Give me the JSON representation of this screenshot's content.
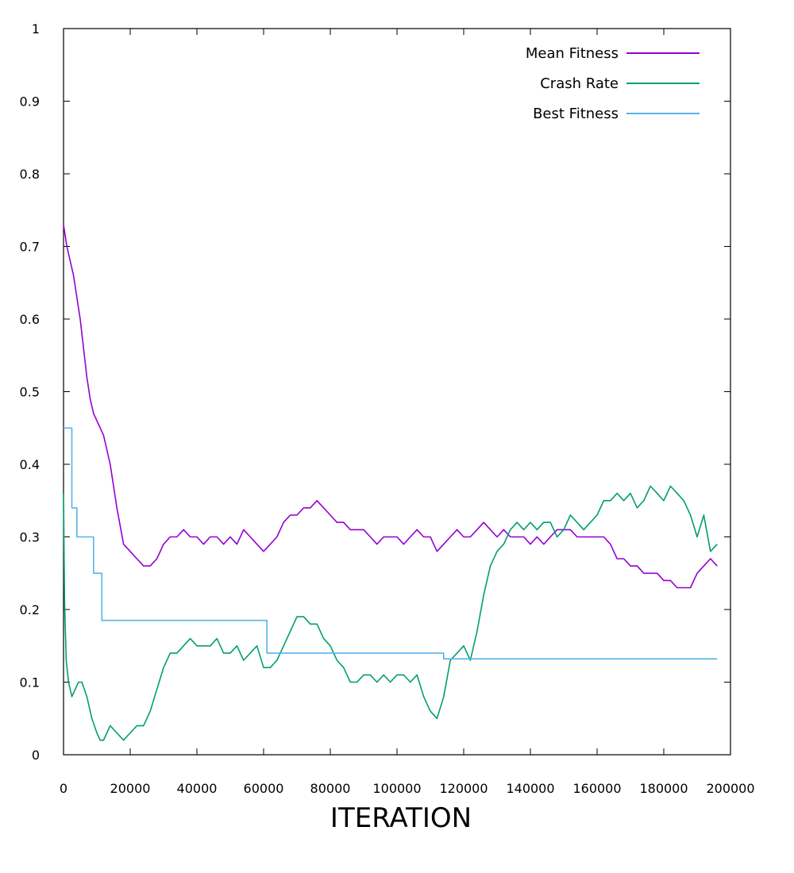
{
  "chart_data": {
    "type": "line",
    "title": "",
    "xlabel": "ITERATION",
    "ylabel": "",
    "xlim": [
      0,
      200000
    ],
    "ylim": [
      0,
      1
    ],
    "x_ticks": [
      0,
      20000,
      40000,
      60000,
      80000,
      100000,
      120000,
      140000,
      160000,
      180000,
      200000
    ],
    "x_tick_labels": [
      "0",
      "20000",
      "40000",
      "60000",
      "80000",
      "100000",
      "120000",
      "140000",
      "160000",
      "180000",
      "200000"
    ],
    "y_ticks": [
      0,
      0.1,
      0.2,
      0.3,
      0.4,
      0.5,
      0.6,
      0.7,
      0.8,
      0.9,
      1
    ],
    "y_tick_labels": [
      "0",
      "0.1",
      "0.2",
      "0.3",
      "0.4",
      "0.5",
      "0.6",
      "0.7",
      "0.8",
      "0.9",
      "1"
    ],
    "grid": false,
    "legend_position": "top-right",
    "series": [
      {
        "name": "Mean Fitness",
        "color": "#9400d3",
        "points": [
          [
            0,
            0.73
          ],
          [
            1000,
            0.7
          ],
          [
            3000,
            0.66
          ],
          [
            5000,
            0.6
          ],
          [
            7000,
            0.52
          ],
          [
            8000,
            0.49
          ],
          [
            9000,
            0.47
          ],
          [
            10000,
            0.46
          ],
          [
            11000,
            0.45
          ],
          [
            12000,
            0.44
          ],
          [
            14000,
            0.4
          ],
          [
            16000,
            0.34
          ],
          [
            18000,
            0.29
          ],
          [
            20000,
            0.28
          ],
          [
            22000,
            0.27
          ],
          [
            24000,
            0.26
          ],
          [
            26000,
            0.26
          ],
          [
            28000,
            0.27
          ],
          [
            30000,
            0.29
          ],
          [
            32000,
            0.3
          ],
          [
            34000,
            0.3
          ],
          [
            36000,
            0.31
          ],
          [
            38000,
            0.3
          ],
          [
            40000,
            0.3
          ],
          [
            42000,
            0.29
          ],
          [
            44000,
            0.3
          ],
          [
            46000,
            0.3
          ],
          [
            48000,
            0.29
          ],
          [
            50000,
            0.3
          ],
          [
            52000,
            0.29
          ],
          [
            54000,
            0.31
          ],
          [
            56000,
            0.3
          ],
          [
            58000,
            0.29
          ],
          [
            60000,
            0.28
          ],
          [
            62000,
            0.29
          ],
          [
            64000,
            0.3
          ],
          [
            66000,
            0.32
          ],
          [
            68000,
            0.33
          ],
          [
            70000,
            0.33
          ],
          [
            72000,
            0.34
          ],
          [
            74000,
            0.34
          ],
          [
            76000,
            0.35
          ],
          [
            78000,
            0.34
          ],
          [
            80000,
            0.33
          ],
          [
            82000,
            0.32
          ],
          [
            84000,
            0.32
          ],
          [
            86000,
            0.31
          ],
          [
            88000,
            0.31
          ],
          [
            90000,
            0.31
          ],
          [
            92000,
            0.3
          ],
          [
            94000,
            0.29
          ],
          [
            96000,
            0.3
          ],
          [
            98000,
            0.3
          ],
          [
            100000,
            0.3
          ],
          [
            102000,
            0.29
          ],
          [
            104000,
            0.3
          ],
          [
            106000,
            0.31
          ],
          [
            108000,
            0.3
          ],
          [
            110000,
            0.3
          ],
          [
            112000,
            0.28
          ],
          [
            114000,
            0.29
          ],
          [
            116000,
            0.3
          ],
          [
            118000,
            0.31
          ],
          [
            120000,
            0.3
          ],
          [
            122000,
            0.3
          ],
          [
            124000,
            0.31
          ],
          [
            126000,
            0.32
          ],
          [
            128000,
            0.31
          ],
          [
            130000,
            0.3
          ],
          [
            132000,
            0.31
          ],
          [
            134000,
            0.3
          ],
          [
            136000,
            0.3
          ],
          [
            138000,
            0.3
          ],
          [
            140000,
            0.29
          ],
          [
            142000,
            0.3
          ],
          [
            144000,
            0.29
          ],
          [
            146000,
            0.3
          ],
          [
            148000,
            0.31
          ],
          [
            150000,
            0.31
          ],
          [
            152000,
            0.31
          ],
          [
            154000,
            0.3
          ],
          [
            156000,
            0.3
          ],
          [
            158000,
            0.3
          ],
          [
            160000,
            0.3
          ],
          [
            162000,
            0.3
          ],
          [
            164000,
            0.29
          ],
          [
            166000,
            0.27
          ],
          [
            168000,
            0.27
          ],
          [
            170000,
            0.26
          ],
          [
            172000,
            0.26
          ],
          [
            174000,
            0.25
          ],
          [
            176000,
            0.25
          ],
          [
            178000,
            0.25
          ],
          [
            180000,
            0.24
          ],
          [
            182000,
            0.24
          ],
          [
            184000,
            0.23
          ],
          [
            186000,
            0.23
          ],
          [
            188000,
            0.23
          ],
          [
            190000,
            0.25
          ],
          [
            192000,
            0.26
          ],
          [
            194000,
            0.27
          ],
          [
            196000,
            0.26
          ]
        ]
      },
      {
        "name": "Crash Rate",
        "color": "#009e73",
        "points": [
          [
            0,
            0.36
          ],
          [
            300,
            0.21
          ],
          [
            800,
            0.13
          ],
          [
            1500,
            0.1
          ],
          [
            2500,
            0.08
          ],
          [
            3500,
            0.09
          ],
          [
            4500,
            0.1
          ],
          [
            5500,
            0.1
          ],
          [
            7000,
            0.08
          ],
          [
            8500,
            0.05
          ],
          [
            10000,
            0.03
          ],
          [
            11000,
            0.02
          ],
          [
            12000,
            0.02
          ],
          [
            13000,
            0.03
          ],
          [
            14000,
            0.04
          ],
          [
            16000,
            0.03
          ],
          [
            18000,
            0.02
          ],
          [
            20000,
            0.03
          ],
          [
            22000,
            0.04
          ],
          [
            24000,
            0.04
          ],
          [
            26000,
            0.06
          ],
          [
            28000,
            0.09
          ],
          [
            30000,
            0.12
          ],
          [
            32000,
            0.14
          ],
          [
            34000,
            0.14
          ],
          [
            36000,
            0.15
          ],
          [
            38000,
            0.16
          ],
          [
            40000,
            0.15
          ],
          [
            42000,
            0.15
          ],
          [
            44000,
            0.15
          ],
          [
            46000,
            0.16
          ],
          [
            48000,
            0.14
          ],
          [
            50000,
            0.14
          ],
          [
            52000,
            0.15
          ],
          [
            54000,
            0.13
          ],
          [
            56000,
            0.14
          ],
          [
            58000,
            0.15
          ],
          [
            60000,
            0.12
          ],
          [
            62000,
            0.12
          ],
          [
            64000,
            0.13
          ],
          [
            66000,
            0.15
          ],
          [
            68000,
            0.17
          ],
          [
            70000,
            0.19
          ],
          [
            72000,
            0.19
          ],
          [
            74000,
            0.18
          ],
          [
            76000,
            0.18
          ],
          [
            78000,
            0.16
          ],
          [
            80000,
            0.15
          ],
          [
            82000,
            0.13
          ],
          [
            84000,
            0.12
          ],
          [
            86000,
            0.1
          ],
          [
            88000,
            0.1
          ],
          [
            90000,
            0.11
          ],
          [
            92000,
            0.11
          ],
          [
            94000,
            0.1
          ],
          [
            96000,
            0.11
          ],
          [
            98000,
            0.1
          ],
          [
            100000,
            0.11
          ],
          [
            102000,
            0.11
          ],
          [
            104000,
            0.1
          ],
          [
            106000,
            0.11
          ],
          [
            108000,
            0.08
          ],
          [
            110000,
            0.06
          ],
          [
            112000,
            0.05
          ],
          [
            114000,
            0.08
          ],
          [
            116000,
            0.13
          ],
          [
            118000,
            0.14
          ],
          [
            120000,
            0.15
          ],
          [
            122000,
            0.13
          ],
          [
            124000,
            0.17
          ],
          [
            126000,
            0.22
          ],
          [
            128000,
            0.26
          ],
          [
            130000,
            0.28
          ],
          [
            132000,
            0.29
          ],
          [
            134000,
            0.31
          ],
          [
            136000,
            0.32
          ],
          [
            138000,
            0.31
          ],
          [
            140000,
            0.32
          ],
          [
            142000,
            0.31
          ],
          [
            144000,
            0.32
          ],
          [
            146000,
            0.32
          ],
          [
            148000,
            0.3
          ],
          [
            150000,
            0.31
          ],
          [
            152000,
            0.33
          ],
          [
            154000,
            0.32
          ],
          [
            156000,
            0.31
          ],
          [
            158000,
            0.32
          ],
          [
            160000,
            0.33
          ],
          [
            162000,
            0.35
          ],
          [
            164000,
            0.35
          ],
          [
            166000,
            0.36
          ],
          [
            168000,
            0.35
          ],
          [
            170000,
            0.36
          ],
          [
            172000,
            0.34
          ],
          [
            174000,
            0.35
          ],
          [
            176000,
            0.37
          ],
          [
            178000,
            0.36
          ],
          [
            180000,
            0.35
          ],
          [
            182000,
            0.37
          ],
          [
            184000,
            0.36
          ],
          [
            186000,
            0.35
          ],
          [
            188000,
            0.33
          ],
          [
            190000,
            0.3
          ],
          [
            192000,
            0.33
          ],
          [
            194000,
            0.28
          ],
          [
            196000,
            0.29
          ]
        ]
      },
      {
        "name": "Best Fitness",
        "color": "#56b4e9",
        "step": true,
        "points": [
          [
            0,
            0.45
          ],
          [
            2500,
            0.34
          ],
          [
            4000,
            0.3
          ],
          [
            9000,
            0.25
          ],
          [
            11500,
            0.185
          ],
          [
            61000,
            0.14
          ],
          [
            114000,
            0.132
          ],
          [
            196000,
            0.132
          ]
        ]
      }
    ]
  }
}
